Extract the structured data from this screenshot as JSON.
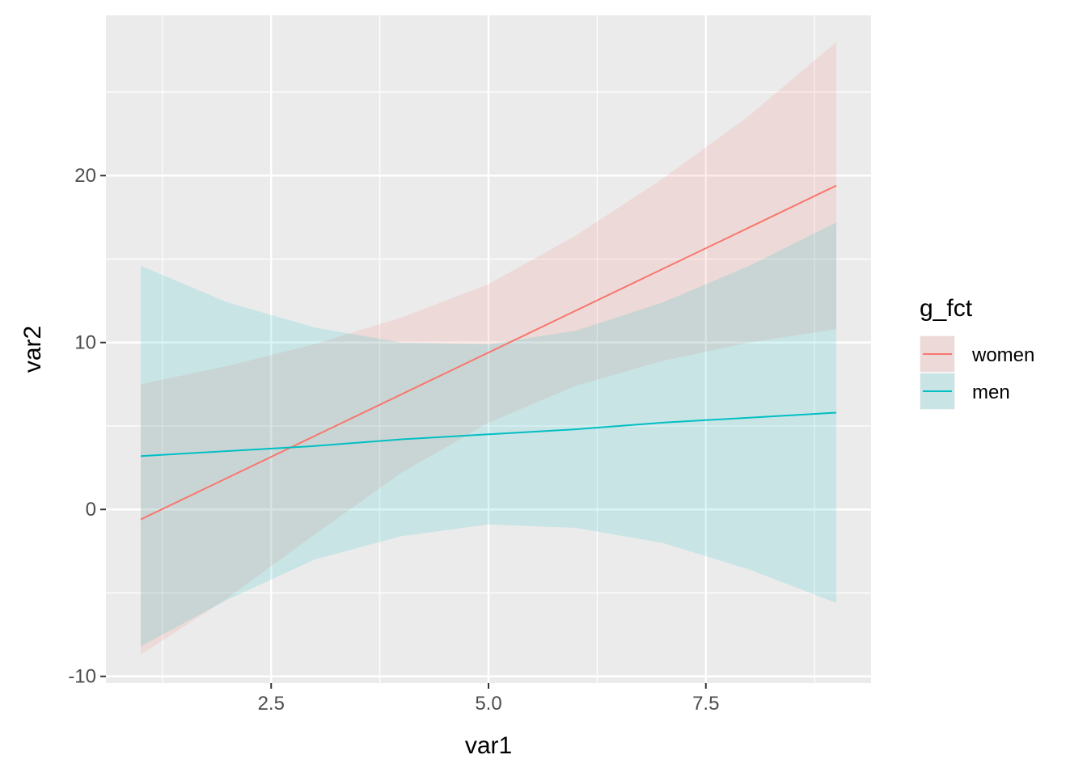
{
  "chart_data": {
    "type": "line",
    "title": "",
    "xlabel": "var1",
    "ylabel": "var2",
    "xlim": [
      0.6,
      9.4
    ],
    "ylim": [
      -10.4,
      29.6
    ],
    "x_ticks": [
      2.5,
      5.0,
      7.5
    ],
    "x_tick_labels": [
      "2.5",
      "5.0",
      "7.5"
    ],
    "x_minor_ticks": [
      1.25,
      3.75,
      6.25,
      8.75
    ],
    "y_ticks": [
      -10,
      0,
      10,
      20
    ],
    "y_tick_labels": [
      "-10",
      "0",
      "10",
      "20"
    ],
    "y_minor_ticks": [
      -5,
      5,
      15,
      25
    ],
    "grid": true,
    "legend": {
      "title": "g_fct",
      "placement": "right",
      "entries": [
        "women",
        "men"
      ]
    },
    "series": [
      {
        "name": "women",
        "color": "#F8766D",
        "x": [
          1,
          2,
          3,
          4,
          5,
          6,
          7,
          8,
          9
        ],
        "y": [
          -0.6,
          1.9,
          4.4,
          6.9,
          9.4,
          11.9,
          14.4,
          16.9,
          19.4
        ],
        "ci_lower": [
          -8.7,
          -5.3,
          -1.5,
          2.2,
          5.2,
          7.4,
          8.9,
          10.0,
          10.8
        ],
        "ci_upper": [
          7.5,
          8.6,
          9.9,
          11.5,
          13.5,
          16.4,
          19.8,
          23.6,
          28.0
        ]
      },
      {
        "name": "men",
        "color": "#00BFC4",
        "x": [
          1,
          2,
          3,
          4,
          5,
          6,
          7,
          8,
          9
        ],
        "y": [
          3.2,
          3.5,
          3.8,
          4.2,
          4.5,
          4.8,
          5.2,
          5.5,
          5.8
        ],
        "ci_lower": [
          -8.2,
          -5.4,
          -3.0,
          -1.6,
          -0.9,
          -1.1,
          -2.0,
          -3.6,
          -5.6
        ],
        "ci_upper": [
          14.6,
          12.4,
          10.9,
          10.0,
          9.9,
          10.7,
          12.4,
          14.6,
          17.2
        ]
      }
    ]
  }
}
